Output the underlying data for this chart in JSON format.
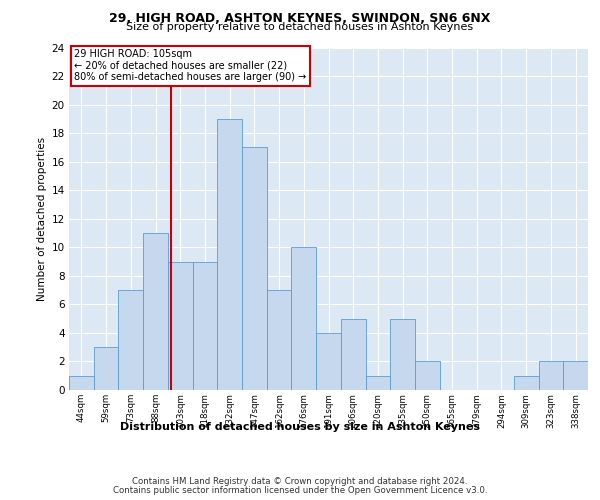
{
  "title1": "29, HIGH ROAD, ASHTON KEYNES, SWINDON, SN6 6NX",
  "title2": "Size of property relative to detached houses in Ashton Keynes",
  "xlabel": "Distribution of detached houses by size in Ashton Keynes",
  "ylabel": "Number of detached properties",
  "bin_labels": [
    "44sqm",
    "59sqm",
    "73sqm",
    "88sqm",
    "103sqm",
    "118sqm",
    "132sqm",
    "147sqm",
    "162sqm",
    "176sqm",
    "191sqm",
    "206sqm",
    "220sqm",
    "235sqm",
    "250sqm",
    "265sqm",
    "279sqm",
    "294sqm",
    "309sqm",
    "323sqm",
    "338sqm"
  ],
  "bar_values": [
    1,
    3,
    7,
    11,
    9,
    9,
    19,
    17,
    7,
    10,
    4,
    5,
    1,
    5,
    2,
    0,
    0,
    0,
    1,
    2,
    2
  ],
  "bar_color": "#c5d8ed",
  "bar_edge_color": "#5b9bd5",
  "ylim": [
    0,
    24
  ],
  "yticks": [
    0,
    2,
    4,
    6,
    8,
    10,
    12,
    14,
    16,
    18,
    20,
    22,
    24
  ],
  "vline_index": 4,
  "vline_color": "#cc0000",
  "annotation_line1": "29 HIGH ROAD: 105sqm",
  "annotation_line2": "← 20% of detached houses are smaller (22)",
  "annotation_line3": "80% of semi-detached houses are larger (90) →",
  "annotation_box_color": "#cc0000",
  "footer1": "Contains HM Land Registry data © Crown copyright and database right 2024.",
  "footer2": "Contains public sector information licensed under the Open Government Licence v3.0.",
  "plot_bg_color": "#dde8f5"
}
